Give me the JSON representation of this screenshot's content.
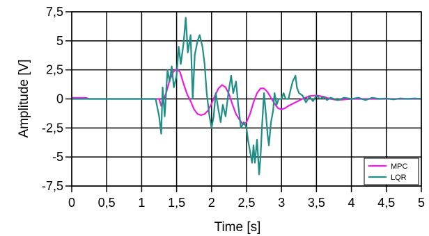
{
  "chart_data": {
    "type": "line",
    "title": "",
    "xlabel": "Time [s]",
    "ylabel": "Amplitude [V]",
    "xlim": [
      0,
      5
    ],
    "ylim": [
      -7.5,
      7.5
    ],
    "grid": true,
    "legend_position": "bottom-right",
    "x_ticks": [
      {
        "value": 0,
        "label": "0"
      },
      {
        "value": 0.5,
        "label": "0,5"
      },
      {
        "value": 1,
        "label": "1"
      },
      {
        "value": 1.5,
        "label": "1,5"
      },
      {
        "value": 2,
        "label": "2"
      },
      {
        "value": 2.5,
        "label": "2,5"
      },
      {
        "value": 3,
        "label": "3"
      },
      {
        "value": 3.5,
        "label": "3,5"
      },
      {
        "value": 4,
        "label": "4"
      },
      {
        "value": 4.5,
        "label": "4,5"
      },
      {
        "value": 5,
        "label": "5"
      }
    ],
    "y_ticks": [
      {
        "value": 7.5,
        "label": "7,5"
      },
      {
        "value": 5,
        "label": "5"
      },
      {
        "value": 2.5,
        "label": "2,5"
      },
      {
        "value": 0,
        "label": "0"
      },
      {
        "value": -2.5,
        "label": "-2,5"
      },
      {
        "value": -5,
        "label": "-5"
      },
      {
        "value": -7.5,
        "label": "-7,5"
      }
    ],
    "series": [
      {
        "name": "MPC",
        "color": "#e81ee0",
        "points": [
          [
            0,
            0.1
          ],
          [
            0.2,
            0.1
          ],
          [
            0.25,
            0
          ],
          [
            0.5,
            0
          ],
          [
            1.0,
            0
          ],
          [
            1.25,
            0
          ],
          [
            1.28,
            -0.6
          ],
          [
            1.3,
            -0.3
          ],
          [
            1.35,
            0.5
          ],
          [
            1.4,
            1.6
          ],
          [
            1.45,
            2.3
          ],
          [
            1.5,
            2.6
          ],
          [
            1.55,
            2.3
          ],
          [
            1.6,
            1.3
          ],
          [
            1.65,
            0.4
          ],
          [
            1.7,
            -0.2
          ],
          [
            1.75,
            -0.9
          ],
          [
            1.8,
            -1.3
          ],
          [
            1.85,
            -1.4
          ],
          [
            1.9,
            -1.3
          ],
          [
            1.95,
            -1.0
          ],
          [
            2.0,
            -0.4
          ],
          [
            2.05,
            0.3
          ],
          [
            2.1,
            0.9
          ],
          [
            2.15,
            1.2
          ],
          [
            2.2,
            1.0
          ],
          [
            2.25,
            0.4
          ],
          [
            2.3,
            -0.5
          ],
          [
            2.35,
            -1.3
          ],
          [
            2.4,
            -1.8
          ],
          [
            2.45,
            -2.2
          ],
          [
            2.5,
            -2.0
          ],
          [
            2.55,
            -1.3
          ],
          [
            2.6,
            -0.3
          ],
          [
            2.65,
            0.5
          ],
          [
            2.7,
            0.9
          ],
          [
            2.75,
            0.9
          ],
          [
            2.8,
            0.6
          ],
          [
            2.85,
            0.1
          ],
          [
            2.9,
            -0.4
          ],
          [
            2.95,
            -0.8
          ],
          [
            3.0,
            -0.9
          ],
          [
            3.05,
            -0.8
          ],
          [
            3.1,
            -0.6
          ],
          [
            3.2,
            -0.3
          ],
          [
            3.3,
            0.0
          ],
          [
            3.4,
            0.25
          ],
          [
            3.5,
            0.3
          ],
          [
            3.6,
            0.2
          ],
          [
            3.7,
            0.0
          ],
          [
            3.8,
            -0.1
          ],
          [
            4.0,
            0.0
          ],
          [
            4.5,
            0.0
          ],
          [
            5.0,
            0.0
          ]
        ]
      },
      {
        "name": "LQR",
        "color": "#1e8e86",
        "points": [
          [
            0,
            0
          ],
          [
            1.0,
            0
          ],
          [
            1.2,
            0
          ],
          [
            1.25,
            -1.5
          ],
          [
            1.28,
            -3.0
          ],
          [
            1.3,
            1.0
          ],
          [
            1.33,
            -1.5
          ],
          [
            1.37,
            2.5
          ],
          [
            1.4,
            1.5
          ],
          [
            1.43,
            2.8
          ],
          [
            1.46,
            1.0
          ],
          [
            1.5,
            2.0
          ],
          [
            1.53,
            4.5
          ],
          [
            1.56,
            3.0
          ],
          [
            1.6,
            4.8
          ],
          [
            1.63,
            7.0
          ],
          [
            1.66,
            4.0
          ],
          [
            1.7,
            5.5
          ],
          [
            1.73,
            0.0
          ],
          [
            1.76,
            3.8
          ],
          [
            1.8,
            5.0
          ],
          [
            1.83,
            5.5
          ],
          [
            1.87,
            4.5
          ],
          [
            1.9,
            3.0
          ],
          [
            1.93,
            0.5
          ],
          [
            1.97,
            -1.5
          ],
          [
            2.0,
            -2.5
          ],
          [
            2.03,
            -1.5
          ],
          [
            2.06,
            0.5
          ],
          [
            2.1,
            -1.0
          ],
          [
            2.13,
            -2.0
          ],
          [
            2.16,
            -0.5
          ],
          [
            2.2,
            -1.5
          ],
          [
            2.24,
            0.5
          ],
          [
            2.28,
            2.0
          ],
          [
            2.31,
            0.5
          ],
          [
            2.35,
            1.5
          ],
          [
            2.38,
            -0.5
          ],
          [
            2.42,
            -2.5
          ],
          [
            2.46,
            -2.0
          ],
          [
            2.5,
            -2.5
          ],
          [
            2.52,
            -3.5
          ],
          [
            2.55,
            -4.5
          ],
          [
            2.58,
            -5.5
          ],
          [
            2.6,
            -4.0
          ],
          [
            2.62,
            -5.5
          ],
          [
            2.65,
            -3.5
          ],
          [
            2.68,
            -6.5
          ],
          [
            2.7,
            -5.0
          ],
          [
            2.72,
            -2.5
          ],
          [
            2.75,
            0.5
          ],
          [
            2.78,
            -1.5
          ],
          [
            2.8,
            -3.0
          ],
          [
            2.82,
            -4.0
          ],
          [
            2.85,
            -2.0
          ],
          [
            2.88,
            -1.0
          ],
          [
            2.9,
            0.5
          ],
          [
            2.93,
            -0.5
          ],
          [
            2.96,
            0.0
          ],
          [
            3.0,
            0.0
          ],
          [
            3.03,
            0.5
          ],
          [
            3.06,
            0.0
          ],
          [
            3.1,
            0.0
          ],
          [
            3.13,
            0.8
          ],
          [
            3.16,
            1.5
          ],
          [
            3.2,
            2.0
          ],
          [
            3.22,
            1.0
          ],
          [
            3.25,
            0.5
          ],
          [
            3.3,
            0.3
          ],
          [
            3.35,
            -0.3
          ],
          [
            3.4,
            0.2
          ],
          [
            3.45,
            -0.2
          ],
          [
            3.5,
            0.3
          ],
          [
            3.55,
            0.0
          ],
          [
            3.6,
            0.2
          ],
          [
            3.65,
            -0.1
          ],
          [
            3.7,
            0.1
          ],
          [
            3.8,
            -0.1
          ],
          [
            3.9,
            0.1
          ],
          [
            4.0,
            0.0
          ],
          [
            4.1,
            0.1
          ],
          [
            4.2,
            -0.1
          ],
          [
            4.3,
            0.1
          ],
          [
            4.4,
            0.0
          ],
          [
            4.5,
            0.05
          ],
          [
            4.6,
            -0.05
          ],
          [
            4.7,
            0.05
          ],
          [
            4.8,
            0.0
          ],
          [
            4.9,
            0.05
          ],
          [
            5.0,
            0.0
          ]
        ]
      }
    ]
  }
}
